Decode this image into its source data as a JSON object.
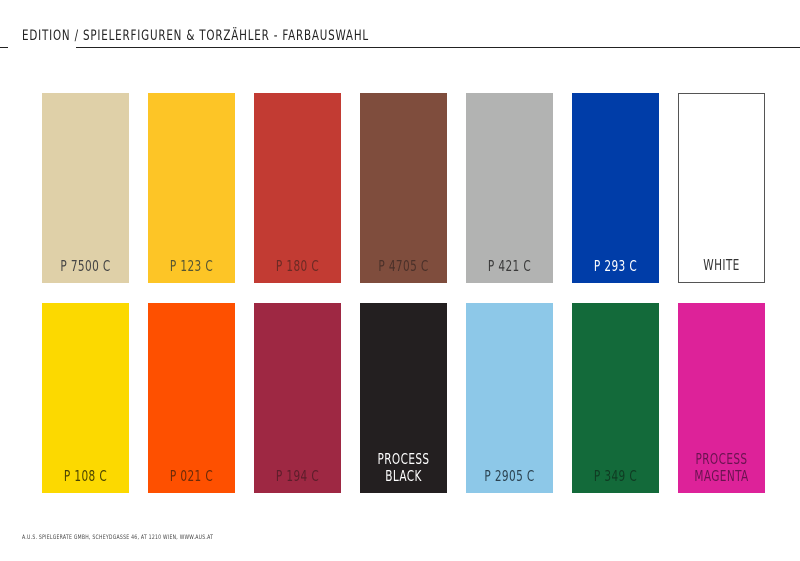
{
  "header": {
    "title": "EDITION / SPIELERFIGUREN & TORZÄHLER - FARBAUSWAHL"
  },
  "swatches": [
    [
      {
        "label": "P 7500 C",
        "color": "#dfd0a8",
        "text": "#444444"
      },
      {
        "label": "P 123 C",
        "color": "#fdc526",
        "text": "#555533"
      },
      {
        "label": "P 180 C",
        "color": "#c23b33",
        "text": "#6a2a24"
      },
      {
        "label": "P 4705 C",
        "color": "#7f4d3d",
        "text": "#4a3029"
      },
      {
        "label": "P 421 C",
        "color": "#b2b3b2",
        "text": "#3a3a3a"
      },
      {
        "label": "P 293 C",
        "color": "#003da8",
        "text": "#ffffff"
      },
      {
        "label": "WHITE",
        "color": "#ffffff",
        "text": "#333333",
        "border": "#555555"
      }
    ],
    [
      {
        "label": "P 108 C",
        "color": "#fcd900",
        "text": "#4a4400"
      },
      {
        "label": "P 021 C",
        "color": "#fe5000",
        "text": "#6b2a08"
      },
      {
        "label": "P 194 C",
        "color": "#9e2843",
        "text": "#5c1d2a"
      },
      {
        "label": "PROCESS\nBLACK",
        "color": "#231f20",
        "text": "#ffffff"
      },
      {
        "label": "P 2905 C",
        "color": "#8dc8e8",
        "text": "#2b4250"
      },
      {
        "label": "P 349 C",
        "color": "#136a3a",
        "text": "#0f3b22"
      },
      {
        "label": "PROCESS\nMAGENTA",
        "color": "#dd2299",
        "text": "#6a1350"
      }
    ]
  ],
  "footer": {
    "text": "A.U.S. SPIELGERÄTE GMBH, SCHEYDGASSE 46, AT 1210 WIEN, WWW.AUS.AT"
  }
}
